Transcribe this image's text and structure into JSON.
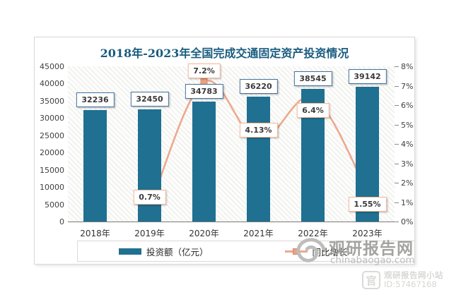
{
  "title": {
    "text": "2018年-2023年全国完成交通固定资产投资情况",
    "color": "#1a5c80"
  },
  "chart_data": {
    "type": "bar",
    "combo": "bar+line",
    "title": "2018年-2023年全国完成交通固定资产投资情况",
    "categories": [
      "2018年",
      "2019年",
      "2020年",
      "2021年",
      "2022年",
      "2023年"
    ],
    "series": [
      {
        "name": "投资额（亿元）",
        "type": "bar",
        "axis": "left",
        "color": "#1f7091",
        "values": [
          32236,
          32450,
          34783,
          36220,
          38545,
          39142
        ],
        "data_labels": [
          "32236",
          "32450",
          "34783",
          "36220",
          "38545",
          "39142"
        ]
      },
      {
        "name": "同比增长",
        "type": "line",
        "axis": "right",
        "color": "#eca98d",
        "marker": "square",
        "values": [
          null,
          0.7,
          7.2,
          4.13,
          6.4,
          1.55
        ],
        "data_labels": [
          "",
          "0.7%",
          "7.2%",
          "4.13%",
          "6.4%",
          "1.55%"
        ]
      }
    ],
    "left_axis": {
      "min": 0,
      "max": 45000,
      "step": 5000,
      "tick_labels": [
        "45000",
        "40000",
        "35000",
        "30000",
        "25000",
        "20000",
        "15000",
        "10000",
        "5000",
        "0"
      ]
    },
    "right_axis": {
      "min": 0,
      "max": 8,
      "step": 1,
      "tick_labels": [
        "8%",
        "7%",
        "6%",
        "5%",
        "4%",
        "3%",
        "2%",
        "1%",
        "0%"
      ]
    },
    "legend_position": "bottom",
    "grid": false,
    "plot_background": "diagonal-hatch"
  },
  "watermark": {
    "brand": "观研报告网",
    "domain": "chinabaogao.com"
  },
  "footer_badge": {
    "icon_glyph": "官",
    "site": "观研报告网小站",
    "id": "ID:57467168"
  }
}
